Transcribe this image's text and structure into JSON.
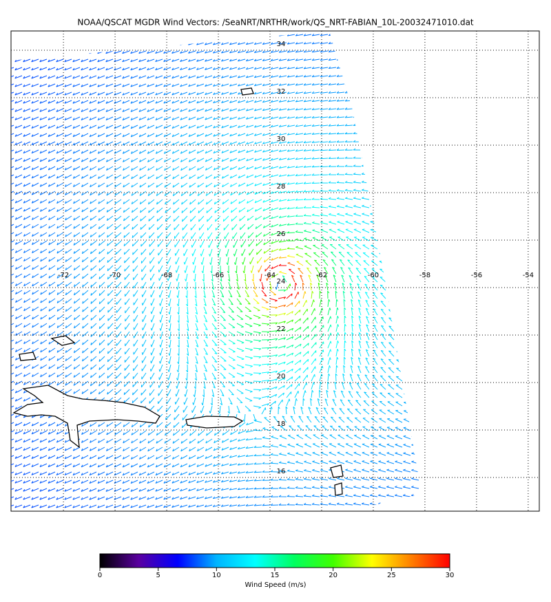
{
  "map": {
    "title": "NOAA/QSCAT MGDR Wind Vectors: /SeaNRT/NRTHR/work/QS_NRT-FABIAN_10L-20032471010.dat",
    "xlim": [
      -74.03,
      -53.57
    ],
    "ylim": [
      14.58,
      34.81
    ],
    "xticks": [
      -72,
      -70,
      -68,
      -66,
      -64,
      -62,
      -60,
      -58,
      -56,
      -54
    ],
    "yticks": [
      16,
      18,
      20,
      22,
      24,
      26,
      28,
      30,
      32,
      34
    ]
  },
  "colorbar": {
    "label": "Wind Speed (m/s)",
    "lim": [
      0,
      30
    ],
    "ticks": [
      0,
      5,
      10,
      15,
      20,
      25,
      30
    ],
    "colors": [
      "#000000",
      "#5a00a0",
      "#0000ff",
      "#00b4ff",
      "#00ffff",
      "#00ff60",
      "#40ff00",
      "#ffff00",
      "#ff8000",
      "#ff0000"
    ]
  }
}
